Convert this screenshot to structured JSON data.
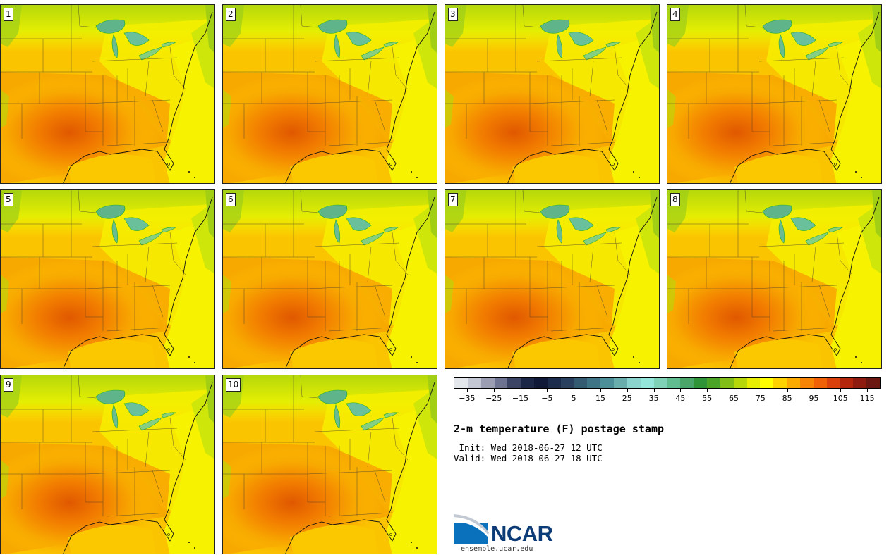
{
  "members": [
    "1",
    "2",
    "3",
    "4",
    "5",
    "6",
    "7",
    "8",
    "9",
    "10"
  ],
  "title": "2-m temperature (F) postage stamp",
  "init_line": " Init: Wed 2018-06-27 12 UTC",
  "valid_line": "Valid: Wed 2018-06-27 18 UTC",
  "colorbar": {
    "ticks": [
      "−35",
      "−25",
      "−15",
      "−5",
      "5",
      "15",
      "25",
      "35",
      "45",
      "55",
      "65",
      "75",
      "85",
      "95",
      "105",
      "115"
    ],
    "colors": [
      "#e3e6ea",
      "#c3c6d3",
      "#9b9eb3",
      "#6d7390",
      "#3c4466",
      "#1c2646",
      "#101a38",
      "#1c2c4c",
      "#29405e",
      "#355b72",
      "#3e7486",
      "#4d8f98",
      "#69adad",
      "#8bd4cd",
      "#93e6d9",
      "#7fd2b6",
      "#5fbd8f",
      "#4aa668",
      "#2f9338",
      "#4ca427",
      "#81bf18",
      "#b6d80b",
      "#e7ee02",
      "#ffff00",
      "#fed100",
      "#fcaa00",
      "#f88405",
      "#f06006",
      "#d9400a",
      "#b3260c",
      "#8e1a10",
      "#6a1811"
    ],
    "range": [
      -40,
      120
    ]
  },
  "logo": {
    "name": "NCAR",
    "url": "ensemble.ucar.edu"
  }
}
